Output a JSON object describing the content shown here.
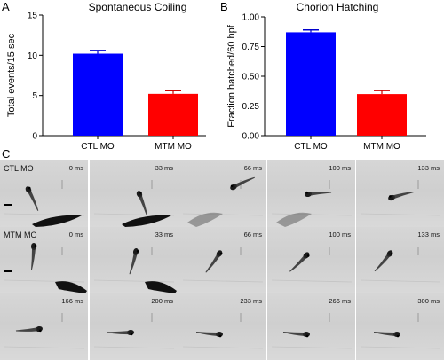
{
  "panels": {
    "A": {
      "letter": "A",
      "chart_data": {
        "type": "bar",
        "title": "Spontaneous Coiling",
        "ylabel": "Total events/15 sec",
        "xlabel": "",
        "categories": [
          "CTL MO",
          "MTM MO"
        ],
        "values": [
          10.2,
          5.2
        ],
        "errors": [
          0.4,
          0.4
        ],
        "colors": [
          "#0000ff",
          "#ff0000"
        ],
        "ylim": [
          0,
          15
        ],
        "yticks": [
          "0",
          "5",
          "10",
          "15"
        ],
        "grid": false
      }
    },
    "B": {
      "letter": "B",
      "chart_data": {
        "type": "bar",
        "title": "Chorion Hatching",
        "ylabel": "Fraction hatched/60 hpf",
        "xlabel": "",
        "categories": [
          "CTL MO",
          "MTM MO"
        ],
        "values": [
          0.87,
          0.35
        ],
        "errors": [
          0.02,
          0.03
        ],
        "colors": [
          "#0000ff",
          "#ff0000"
        ],
        "ylim": [
          0,
          1.0
        ],
        "yticks": [
          "0.00",
          "0.25",
          "0.50",
          "0.75",
          "1.00"
        ],
        "grid": false
      }
    },
    "C": {
      "letter": "C",
      "rows": [
        {
          "label": "CTL MO",
          "frames": [
            "0 ms",
            "33 ms",
            "66 ms",
            "100 ms",
            "133 ms"
          ]
        },
        {
          "label": "MTM MO",
          "frames": [
            "0 ms",
            "33 ms",
            "66 ms",
            "100 ms",
            "133 ms"
          ]
        },
        {
          "label": "",
          "frames": [
            "166 ms",
            "200 ms",
            "233 ms",
            "266 ms",
            "300 ms"
          ]
        }
      ]
    }
  }
}
